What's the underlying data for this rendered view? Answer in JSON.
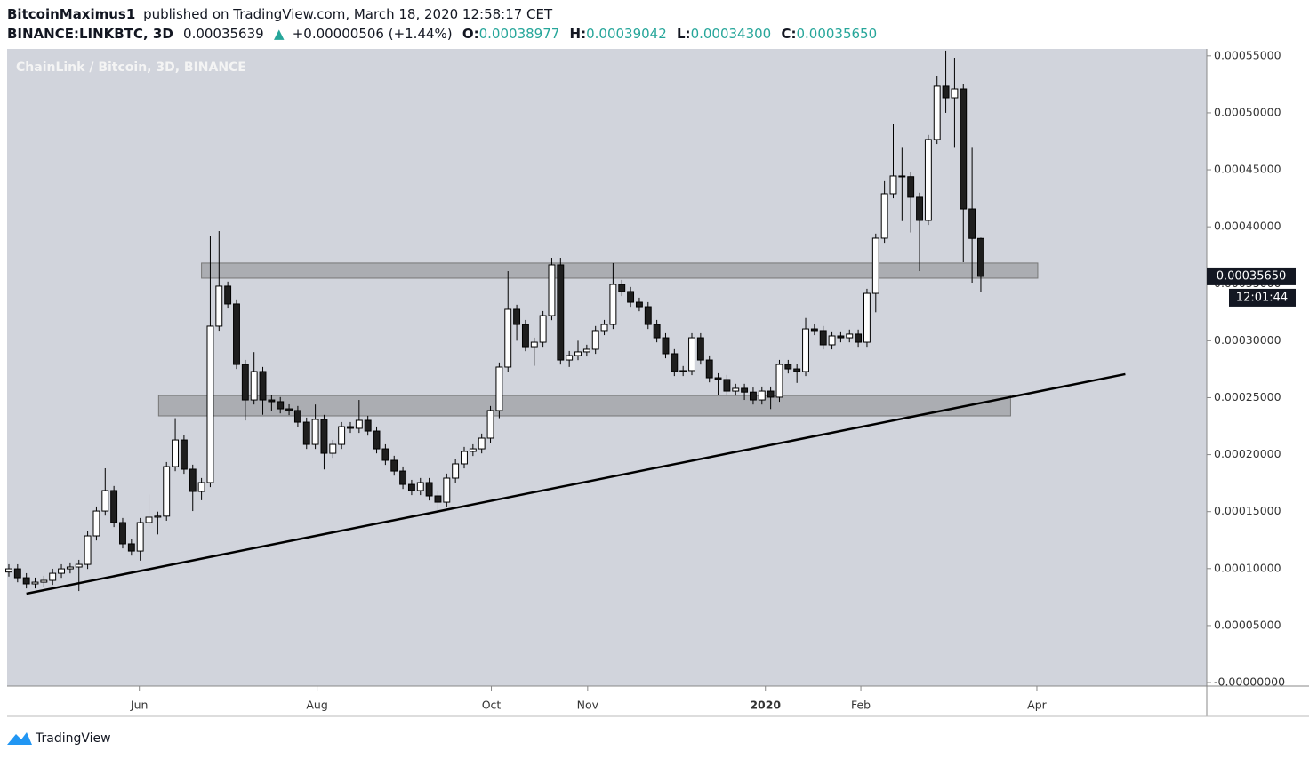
{
  "header": {
    "author": "BitcoinMaximus1",
    "published": "published on TradingView.com, March 18, 2020 12:58:17 CET",
    "symbol": "BINANCE:LINKBTC, 3D",
    "price": "0.00035639",
    "change": "+0.00000506 (+1.44%)",
    "ohlc": [
      {
        "key": "O:",
        "value": "0.00038977"
      },
      {
        "key": "H:",
        "value": "0.00039042"
      },
      {
        "key": "L:",
        "value": "0.00034300"
      },
      {
        "key": "C:",
        "value": "0.00035650"
      }
    ]
  },
  "footer": {
    "brand": "TradingView"
  },
  "chart_data": {
    "type": "candlestick",
    "title": "ChainLink / Bitcoin, 3D, BINANCE",
    "up_color": "#ffffff",
    "down_color": "#1e1e1e",
    "wick_color": "#000000",
    "open": [
      9.7e-05,
      9.98e-05,
      9.2e-05,
      8.66e-05,
      8.81e-05,
      8.97e-05,
      9.59e-05,
      9.98e-05,
      0.0001014,
      0.0001037,
      0.0001287,
      0.0001505,
      0.0001685,
      0.0001404,
      0.0001217,
      0.0001154,
      0.0001404,
      0.0001451,
      0.000146,
      0.0001895,
      0.0002129,
      0.0001872,
      0.0001677,
      0.0001755,
      0.0003128,
      0.0003479,
      0.0003323,
      0.0002792,
      0.000248,
      0.000273,
      0.000248,
      0.0002465,
      0.0002402,
      0.0002387,
      0.0002285,
      0.000209,
      0.0002309,
      0.0002012,
      0.000209,
      0.0002246,
      0.0002231,
      0.0002301,
      0.0002207,
      0.0002051,
      0.000195,
      0.0001856,
      0.0001739,
      0.0001685,
      0.0001755,
      0.0001638,
      0.0001583,
      0.0001794,
      0.0001919,
      0.0002028,
      0.0002051,
      0.0002145,
      0.0002387,
      0.0002769,
      0.0003276,
      0.0003143,
      0.0002948,
      0.0002987,
      0.0003221,
      0.0003666,
      0.0002831,
      0.000287,
      0.0002902,
      0.0002925,
      0.0003089,
      0.0003143,
      0.0003494,
      0.0003432,
      0.0003338,
      0.0003299,
      0.0003143,
      0.0003026,
      0.0002886,
      0.000273,
      0.0002738,
      0.0003026,
      0.0002831,
      0.0002675,
      0.000266,
      0.0002558,
      0.0002582,
      0.0002549,
      0.000248,
      0.0002558,
      0.0002504,
      0.0002792,
      0.0002753,
      0.000273,
      0.0003104,
      0.0003089,
      0.0002964,
      0.0003042,
      0.0003026,
      0.0003058,
      0.0002987,
      0.0003416,
      0.00039,
      0.000429,
      0.0004446,
      0.000444,
      0.0004259,
      0.0004056,
      0.0004766,
      0.0005234,
      0.0005132,
      0.000521,
      0.0004157,
      0.00038977
    ],
    "high": [
      0.0001038,
      0.0001038,
      9.6e-05,
      9.21e-05,
      9.37e-05,
      9.99e-05,
      0.0001038,
      0.0001054,
      0.0001077,
      0.0001327,
      0.0001545,
      0.000188,
      0.0001725,
      0.0001444,
      0.0001257,
      0.0001444,
      0.000165,
      0.00015,
      0.0001935,
      0.000232,
      0.0002169,
      0.0001912,
      0.0001795,
      0.0003923,
      0.0003962,
      0.0003519,
      0.0003363,
      0.0002832,
      0.00029,
      0.000277,
      0.000252,
      0.0002505,
      0.0002442,
      0.0002427,
      0.0002325,
      0.000244,
      0.0002349,
      0.000213,
      0.0002286,
      0.0002286,
      0.000248,
      0.0002341,
      0.0002247,
      0.0002091,
      0.000199,
      0.0001896,
      0.0001779,
      0.0001795,
      0.0001795,
      0.0001678,
      0.0001834,
      0.0001959,
      0.0002068,
      0.0002091,
      0.0002185,
      0.0002427,
      0.0002809,
      0.0003611,
      0.0003316,
      0.0003183,
      0.0003027,
      0.0003261,
      0.0003728,
      0.0003728,
      0.000291,
      0.0003,
      0.0002965,
      0.0003129,
      0.0003183,
      0.0003682,
      0.0003534,
      0.0003472,
      0.0003378,
      0.0003339,
      0.0003183,
      0.0003066,
      0.0002926,
      0.0002778,
      0.0003066,
      0.0003066,
      0.0002871,
      0.0002715,
      0.00027,
      0.0002622,
      0.0002622,
      0.0002589,
      0.0002598,
      0.0002598,
      0.0002832,
      0.0002832,
      0.0002793,
      0.00032,
      0.0003144,
      0.0003129,
      0.0003082,
      0.0003082,
      0.0003098,
      0.0003098,
      0.0003456,
      0.000394,
      0.00044,
      0.00049,
      0.00047,
      0.000448,
      0.0004299,
      0.0004806,
      0.000532,
      0.0005546,
      0.0005483,
      0.000525,
      0.00047,
      0.00039042
    ],
    "low": [
      9.3e-05,
      8.8e-05,
      8.26e-05,
      8.26e-05,
      8.41e-05,
      8.57e-05,
      9.19e-05,
      9.58e-05,
      8.03e-05,
      9.97e-05,
      0.0001247,
      0.0001465,
      0.0001364,
      0.0001177,
      0.0001114,
      0.000107,
      0.0001364,
      0.00013,
      0.000142,
      0.0001855,
      0.0001832,
      0.0001505,
      0.00016,
      0.0001715,
      0.0003088,
      0.0003283,
      0.0002752,
      0.00023,
      0.000244,
      0.000235,
      0.000238,
      0.0002362,
      0.0002347,
      0.0002245,
      0.000205,
      0.000205,
      0.000187,
      0.0001972,
      0.000205,
      0.0002191,
      0.0002191,
      0.0002167,
      0.0002011,
      0.000191,
      0.0001816,
      0.0001699,
      0.0001645,
      0.0001645,
      0.0001598,
      0.00015,
      0.0001543,
      0.0001754,
      0.0001879,
      0.0001988,
      0.0002011,
      0.0002105,
      0.000232,
      0.0002729,
      0.0003,
      0.0002908,
      0.000278,
      0.0002947,
      0.0003181,
      0.0002791,
      0.000277,
      0.000283,
      0.0002862,
      0.0002885,
      0.0003049,
      0.0003103,
      0.0003392,
      0.0003298,
      0.0003259,
      0.0003103,
      0.0002986,
      0.0002846,
      0.000269,
      0.000269,
      0.0002698,
      0.0002791,
      0.0002635,
      0.000252,
      0.0002518,
      0.0002518,
      0.000248,
      0.000244,
      0.000244,
      0.00024,
      0.0002464,
      0.0002713,
      0.000263,
      0.000269,
      0.0003049,
      0.0002924,
      0.0002924,
      0.0002986,
      0.0002986,
      0.0002947,
      0.0002947,
      0.000325,
      0.000386,
      0.000425,
      0.000405,
      0.000395,
      0.0003611,
      0.0004016,
      0.0004726,
      0.0005,
      0.00047,
      0.0003689,
      0.000351,
      0.000343
    ],
    "close": [
      9.98e-05,
      9.2e-05,
      8.66e-05,
      8.81e-05,
      8.97e-05,
      9.59e-05,
      9.98e-05,
      0.0001014,
      0.0001037,
      0.0001287,
      0.0001505,
      0.0001685,
      0.0001404,
      0.0001217,
      0.0001154,
      0.0001404,
      0.0001451,
      0.000146,
      0.0001895,
      0.0002129,
      0.0001872,
      0.0001677,
      0.0001755,
      0.0003128,
      0.0003479,
      0.0003323,
      0.0002792,
      0.000248,
      0.000273,
      0.000248,
      0.0002465,
      0.0002402,
      0.0002387,
      0.0002285,
      0.000209,
      0.0002309,
      0.0002012,
      0.000209,
      0.0002246,
      0.0002231,
      0.0002301,
      0.0002207,
      0.0002051,
      0.000195,
      0.0001856,
      0.0001739,
      0.0001685,
      0.0001755,
      0.0001638,
      0.0001583,
      0.0001794,
      0.0001919,
      0.0002028,
      0.0002051,
      0.0002145,
      0.0002387,
      0.0002769,
      0.0003276,
      0.0003143,
      0.0002948,
      0.0002987,
      0.0003221,
      0.0003666,
      0.0002831,
      0.000287,
      0.0002902,
      0.0002925,
      0.0003089,
      0.0003143,
      0.0003494,
      0.0003432,
      0.0003338,
      0.0003299,
      0.0003143,
      0.0003026,
      0.0002886,
      0.000273,
      0.0002738,
      0.0003026,
      0.0002831,
      0.0002675,
      0.000266,
      0.0002558,
      0.0002582,
      0.0002549,
      0.000248,
      0.0002558,
      0.0002504,
      0.0002792,
      0.0002753,
      0.000273,
      0.0003104,
      0.0003089,
      0.0002964,
      0.0003042,
      0.0003026,
      0.0003058,
      0.0002987,
      0.0003416,
      0.00039,
      0.000429,
      0.0004446,
      0.000444,
      0.0004259,
      0.0004056,
      0.0004766,
      0.0005234,
      0.0005132,
      0.000521,
      0.0004157,
      0.0003898,
      0.0003565
    ],
    "xlim": [
      -0.2,
      136.8
    ],
    "xticks": [
      {
        "value": 14.9,
        "label": "Jun"
      },
      {
        "value": 35.2,
        "label": "Aug"
      },
      {
        "value": 55.1,
        "label": "Oct"
      },
      {
        "value": 66.1,
        "label": "Nov"
      },
      {
        "value": 86.4,
        "label": "2020"
      },
      {
        "value": 97.3,
        "label": "Feb"
      },
      {
        "value": 117.4,
        "label": "Apr"
      }
    ],
    "ylim": [
      -3.1e-06,
      0.0005561
    ],
    "yticks": [
      {
        "value": 0,
        "label": "-0.00000000"
      },
      {
        "value": 5e-05,
        "label": "0.00005000"
      },
      {
        "value": 0.0001,
        "label": "0.00010000"
      },
      {
        "value": 0.00015,
        "label": "0.00015000"
      },
      {
        "value": 0.0002,
        "label": "0.00020000"
      },
      {
        "value": 0.00025,
        "label": "0.00025000"
      },
      {
        "value": 0.0003,
        "label": "0.00030000"
      },
      {
        "value": 0.00035,
        "label": "0.00035000"
      },
      {
        "value": 0.0004,
        "label": "0.00040000"
      },
      {
        "value": 0.00045,
        "label": "0.00045000"
      },
      {
        "value": 0.0005,
        "label": "0.00050000"
      },
      {
        "value": 0.00055,
        "label": "0.00055000"
      }
    ],
    "zones": [
      {
        "x": [
          22.0,
          117.5
        ],
        "y": [
          0.0003549,
          0.0003682
        ]
      },
      {
        "x": [
          17.1,
          114.4
        ],
        "y": [
          0.000234,
          0.0002519
        ]
      }
    ],
    "trendline": {
      "x": [
        2.0,
        127.5
      ],
      "y": [
        7.8e-05,
        0.0002707
      ]
    },
    "last_price": {
      "value": 0.0003565,
      "label": "0.00035650"
    },
    "countdown": "12:01:44"
  }
}
